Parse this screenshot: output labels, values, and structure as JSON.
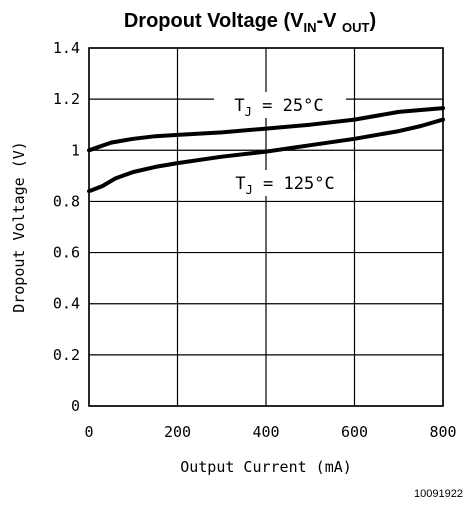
{
  "chart_data": {
    "type": "line",
    "title": {
      "prefix": "Dropout Voltage (V",
      "sub1": "IN",
      "mid": "-V ",
      "sub2": "OUT",
      "suffix": ")"
    },
    "xlabel": "Output Current (mA)",
    "ylabel": "Dropout Voltage (V)",
    "xlim": [
      0,
      800
    ],
    "ylim": [
      0,
      1.4
    ],
    "xticks": [
      "0",
      "200",
      "400",
      "600",
      "800"
    ],
    "yticks": [
      "0",
      "0.2",
      "0.4",
      "0.6",
      "0.8",
      "1",
      "1.2",
      "1.4"
    ],
    "grid": true,
    "series": [
      {
        "name": "T_J = 25°C",
        "x": [
          0,
          50,
          100,
          150,
          200,
          300,
          400,
          500,
          600,
          700,
          800
        ],
        "y": [
          1.0,
          1.03,
          1.045,
          1.055,
          1.06,
          1.07,
          1.085,
          1.1,
          1.12,
          1.15,
          1.165
        ]
      },
      {
        "name": "T_J = 125°C",
        "x": [
          0,
          30,
          60,
          100,
          150,
          200,
          300,
          400,
          500,
          600,
          700,
          750,
          800
        ],
        "y": [
          0.84,
          0.86,
          0.89,
          0.915,
          0.935,
          0.95,
          0.975,
          0.995,
          1.02,
          1.045,
          1.075,
          1.095,
          1.12
        ]
      }
    ],
    "annotations": [
      {
        "text_prefix": "T",
        "text_sub": "J",
        "text_suffix": " = 25°C",
        "series": "T_J = 25°C"
      },
      {
        "text_prefix": "T",
        "text_sub": "J",
        "text_suffix": " = 125°C",
        "series": "T_J = 125°C"
      }
    ],
    "figure_code": "10091922"
  }
}
